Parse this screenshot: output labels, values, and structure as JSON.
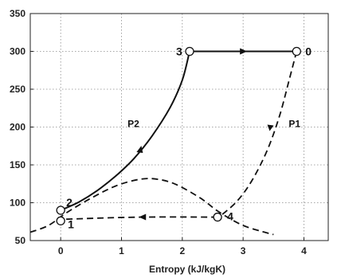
{
  "chart_data": {
    "type": "line",
    "title": "",
    "xlabel": "Entropy (kJ/kgK)",
    "ylabel": "",
    "xlim": [
      -0.5,
      4.4
    ],
    "ylim": [
      50,
      350
    ],
    "x_ticks": [
      0,
      1,
      2,
      3,
      4
    ],
    "y_ticks": [
      50,
      100,
      150,
      200,
      250,
      300,
      350
    ],
    "x_tick_labels": [
      "0",
      "1",
      "2",
      "3",
      "4"
    ],
    "y_tick_labels": [
      "50",
      "100",
      "150",
      "200",
      "250",
      "300",
      "350"
    ],
    "grid": true,
    "legend": "none",
    "series": [
      {
        "name": "P2",
        "style": "solid",
        "points": [
          [
            0.0,
            90
          ],
          [
            0.3,
            101
          ],
          [
            0.6,
            116
          ],
          [
            0.9,
            135
          ],
          [
            1.2,
            158
          ],
          [
            1.5,
            188
          ],
          [
            1.8,
            226
          ],
          [
            2.0,
            262
          ],
          [
            2.12,
            300
          ]
        ]
      },
      {
        "name": "P1",
        "style": "dashed",
        "points": [
          [
            3.88,
            300
          ],
          [
            3.75,
            260
          ],
          [
            3.6,
            215
          ],
          [
            3.4,
            170
          ],
          [
            3.15,
            130
          ],
          [
            2.9,
            102
          ],
          [
            2.62,
            82
          ]
        ]
      },
      {
        "name": "",
        "style": "solid",
        "points": [
          [
            2.12,
            300
          ],
          [
            3.88,
            300
          ]
        ]
      },
      {
        "name": "",
        "style": "dashed",
        "points": [
          [
            2.58,
            81
          ],
          [
            1.3,
            81
          ],
          [
            0.0,
            78
          ]
        ]
      },
      {
        "name": "",
        "style": "dashed",
        "points": [
          [
            -0.5,
            61
          ],
          [
            -0.2,
            70
          ],
          [
            0.1,
            87
          ],
          [
            0.5,
            106
          ],
          [
            0.9,
            122
          ],
          [
            1.3,
            131
          ],
          [
            1.6,
            131
          ],
          [
            1.9,
            124
          ],
          [
            2.3,
            106
          ],
          [
            2.6,
            88
          ],
          [
            3.0,
            70
          ],
          [
            3.4,
            60
          ],
          [
            3.5,
            58
          ]
        ]
      }
    ],
    "state_points": [
      {
        "label": "1",
        "x": 0.0,
        "y": 76
      },
      {
        "label": "2",
        "x": 0.0,
        "y": 90
      },
      {
        "label": "3",
        "x": 2.12,
        "y": 300
      },
      {
        "label": "4",
        "x": 2.58,
        "y": 81
      },
      {
        "label": "0",
        "x": 3.88,
        "y": 300
      }
    ],
    "annotations": [
      {
        "text": "P2",
        "x": 1.1,
        "y": 200
      },
      {
        "text": "P1",
        "x": 3.75,
        "y": 200
      }
    ],
    "arrows": [
      {
        "x": 1.3,
        "y": 170,
        "direction": "up"
      },
      {
        "x": 3.0,
        "y": 300,
        "direction": "right"
      },
      {
        "x": 3.45,
        "y": 200,
        "direction": "down"
      },
      {
        "x": 1.35,
        "y": 81,
        "direction": "left"
      }
    ]
  }
}
